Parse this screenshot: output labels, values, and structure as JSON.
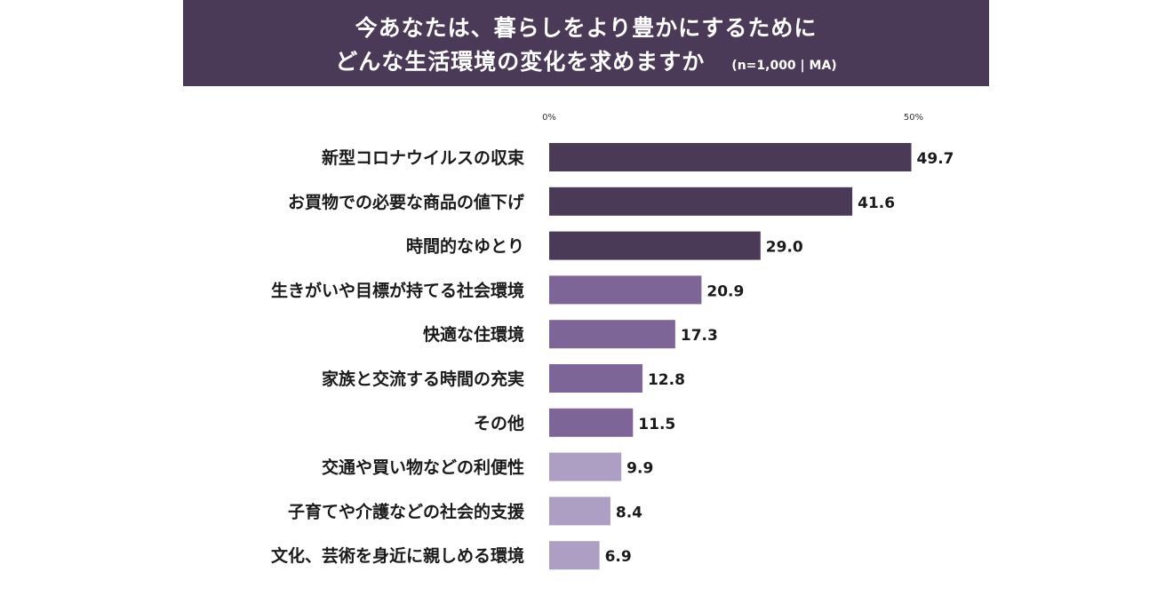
{
  "header": {
    "title_line1": "今あなたは、暮らしをより豊かにするために",
    "title_line2": "どんな生活環境の変化を求めますか",
    "sample_note": "(n=1,000 | MA)"
  },
  "chart_data": {
    "type": "bar",
    "orientation": "horizontal",
    "title": "今あなたは、暮らしをより豊かにするために どんな生活環境の変化を求めますか",
    "xlabel": "",
    "ylabel": "",
    "xlim": [
      0,
      50
    ],
    "ticks": [
      "0%",
      "50%"
    ],
    "grid": false,
    "categories": [
      "新型コロナウイルスの収束",
      "お買物での必要な商品の値下げ",
      "時間的なゆとり",
      "生きがいや目標が持てる社会環境",
      "快適な住環境",
      "家族と交流する時間の充実",
      "その他",
      "交通や買い物などの利便性",
      "子育てや介護などの社会的支援",
      "文化、芸術を身近に親しめる環境"
    ],
    "values": [
      49.7,
      41.6,
      29.0,
      20.9,
      17.3,
      12.8,
      11.5,
      9.9,
      8.4,
      6.9
    ],
    "value_labels": [
      "49.7",
      "41.6",
      "29.0",
      "20.9",
      "17.3",
      "12.8",
      "11.5",
      "9.9",
      "8.4",
      "6.9"
    ],
    "bar_colors": [
      "#4a3a58",
      "#4a3a58",
      "#4a3a58",
      "#7e6597",
      "#7e6597",
      "#7e6597",
      "#7e6597",
      "#ad9fc3",
      "#ad9fc3",
      "#ad9fc3"
    ]
  }
}
